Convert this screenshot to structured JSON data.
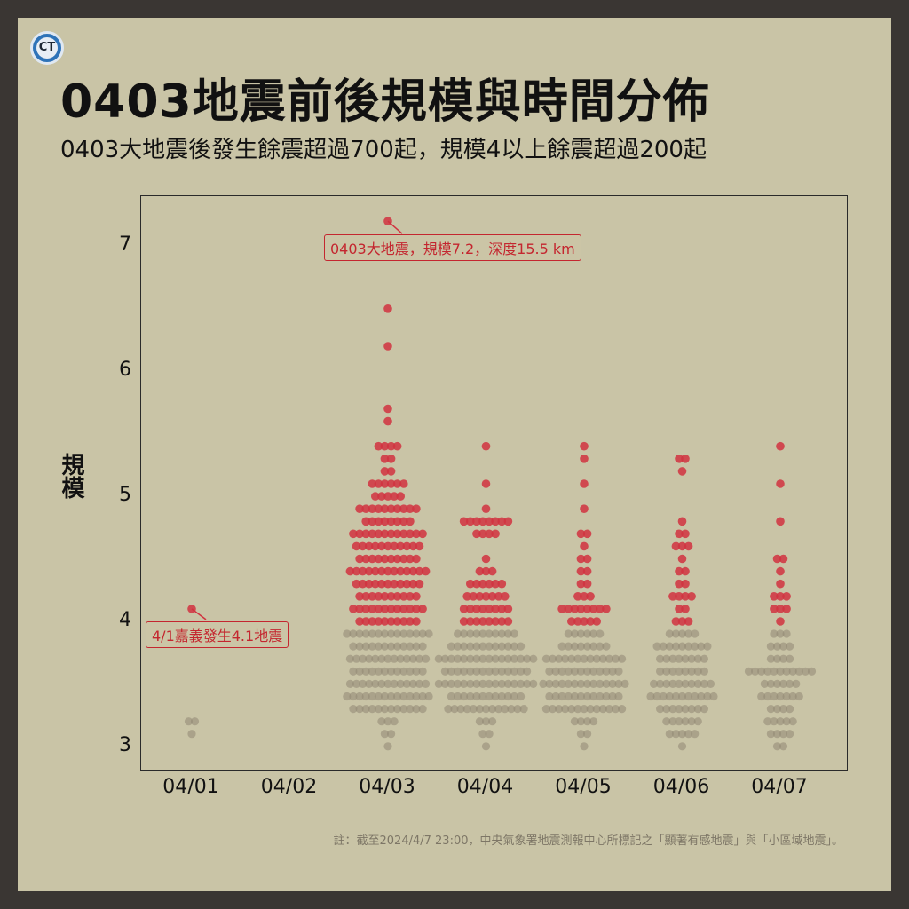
{
  "header": {
    "logo_text": "CT",
    "title": "0403地震前後規模與時間分佈",
    "subtitle": "0403大地震後發生餘震超過700起，規模4以上餘震超過200起"
  },
  "footnote": "註：截至2024/4/7 23:00，中央氣象署地震測報中心所標記之「顯著有感地震」與「小區域地震」。",
  "colors": {
    "background": "#c9c4a6",
    "frame": "#3a3633",
    "strong": "#d1323f",
    "weak": "#8f8672"
  },
  "chart_data": {
    "type": "scatter",
    "subtype": "beeswarm",
    "ylabel": "規模",
    "xlabel": "",
    "categories": [
      "04/01",
      "04/02",
      "04/03",
      "04/04",
      "04/05",
      "04/06",
      "04/07"
    ],
    "ylim": [
      2.8,
      7.4
    ],
    "yticks": [
      3,
      4,
      5,
      6,
      7
    ],
    "grid": false,
    "color_rule": "magnitude >= 4 shown in red, below 4 in grey",
    "annotations": [
      {
        "text": "0403大地震，規模7.2，深度15.5 km",
        "x": "04/03",
        "y": 7.2
      },
      {
        "text": "4/1嘉義發生4.1地震",
        "x": "04/01",
        "y": 4.1
      }
    ],
    "distribution": [
      {
        "day": "04/01",
        "counts": {
          "3.1": 1,
          "3.2": 2,
          "4.1": 1
        }
      },
      {
        "day": "04/02",
        "counts": {}
      },
      {
        "day": "04/03",
        "counts": {
          "3.0": 1,
          "3.1": 2,
          "3.2": 3,
          "3.3": 12,
          "3.4": 14,
          "3.5": 13,
          "3.6": 12,
          "3.7": 13,
          "3.8": 12,
          "3.9": 14,
          "4.0": 10,
          "4.1": 12,
          "4.2": 10,
          "4.3": 11,
          "4.4": 13,
          "4.5": 10,
          "4.6": 11,
          "4.7": 12,
          "4.8": 8,
          "4.9": 10,
          "5.0": 5,
          "5.1": 6,
          "5.2": 2,
          "5.3": 2,
          "5.4": 4,
          "5.6": 1,
          "5.7": 1,
          "6.2": 1,
          "6.5": 1,
          "7.2": 1
        }
      },
      {
        "day": "04/04",
        "counts": {
          "3.0": 1,
          "3.1": 2,
          "3.2": 3,
          "3.3": 13,
          "3.4": 12,
          "3.5": 16,
          "3.6": 14,
          "3.7": 16,
          "3.8": 12,
          "3.9": 10,
          "4.0": 8,
          "4.1": 8,
          "4.2": 7,
          "4.3": 6,
          "4.4": 3,
          "4.5": 1,
          "4.7": 4,
          "4.8": 8,
          "4.9": 1,
          "5.1": 1,
          "5.4": 1
        }
      },
      {
        "day": "04/05",
        "counts": {
          "3.0": 1,
          "3.1": 2,
          "3.2": 4,
          "3.3": 13,
          "3.4": 12,
          "3.5": 14,
          "3.6": 12,
          "3.7": 13,
          "3.8": 8,
          "3.9": 6,
          "4.0": 5,
          "4.1": 8,
          "4.2": 3,
          "4.3": 2,
          "4.4": 2,
          "4.5": 2,
          "4.6": 1,
          "4.7": 2,
          "4.9": 1,
          "5.1": 1,
          "5.3": 1,
          "5.4": 1
        }
      },
      {
        "day": "04/06",
        "counts": {
          "3.0": 1,
          "3.1": 5,
          "3.2": 6,
          "3.3": 8,
          "3.4": 11,
          "3.5": 10,
          "3.6": 8,
          "3.7": 8,
          "3.8": 9,
          "3.9": 5,
          "4.0": 3,
          "4.1": 2,
          "4.2": 4,
          "4.3": 2,
          "4.4": 2,
          "4.5": 1,
          "4.6": 3,
          "4.7": 2,
          "4.8": 1,
          "5.2": 1,
          "5.3": 2
        }
      },
      {
        "day": "04/07",
        "counts": {
          "3.0": 2,
          "3.1": 4,
          "3.2": 5,
          "3.3": 4,
          "3.4": 7,
          "3.5": 6,
          "3.6": 11,
          "3.7": 4,
          "3.8": 4,
          "3.9": 3,
          "4.0": 1,
          "4.1": 3,
          "4.2": 3,
          "4.3": 1,
          "4.4": 1,
          "4.5": 2,
          "4.8": 1,
          "5.1": 1,
          "5.4": 1
        }
      }
    ]
  }
}
